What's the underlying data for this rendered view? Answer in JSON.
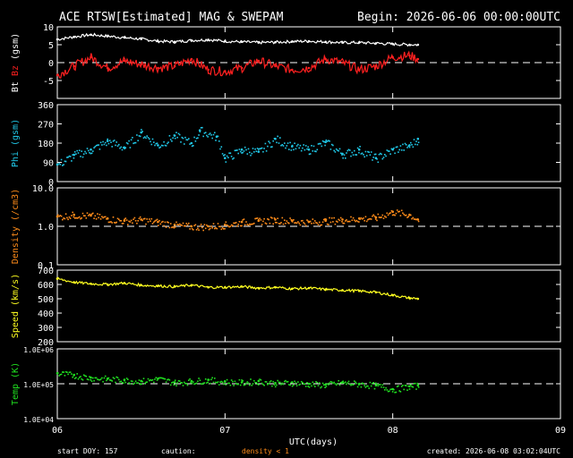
{
  "header": {
    "title": "ACE RTSW[Estimated] MAG & SWEPAM",
    "begin": "Begin: 2026-06-06 00:00:00UTC"
  },
  "footer": {
    "start_doy": "start DOY: 157",
    "caution": "caution:",
    "density_note": "density < 1",
    "created": "created: 2026-06-08 03:02:04UTC"
  },
  "colors": {
    "background": "#000000",
    "axis": "#ffffff",
    "bt": "#ffffff",
    "bz": "#ff2020",
    "phi": "#20c8e8",
    "density": "#ff8c1a",
    "speed": "#ffff20",
    "temp": "#20e020"
  },
  "chart_data": [
    {
      "type": "line",
      "panel": "mag",
      "ylabel_parts": [
        "Bt",
        "Bz",
        "(gsm)"
      ],
      "ylim": [
        -10,
        10
      ],
      "yticks": [
        "10",
        "5",
        "0",
        "-5"
      ],
      "scale": "linear",
      "reference_line": 0,
      "series": [
        {
          "name": "Bt",
          "x": [
            0,
            0.1,
            0.2,
            0.3,
            0.4,
            0.5,
            0.6,
            0.7,
            0.8,
            0.9,
            1.0,
            1.1,
            1.2,
            1.3,
            1.4,
            1.5,
            1.6,
            1.7,
            1.8,
            1.9,
            2.0,
            2.1,
            2.15
          ],
          "values": [
            6.5,
            7.2,
            7.8,
            7.4,
            7.0,
            6.6,
            6.0,
            5.8,
            6.2,
            6.4,
            6.0,
            5.8,
            5.6,
            5.7,
            5.9,
            6.0,
            5.8,
            5.6,
            5.6,
            5.4,
            5.2,
            5.0,
            5.0
          ]
        },
        {
          "name": "Bz",
          "x": [
            0,
            0.1,
            0.2,
            0.3,
            0.4,
            0.5,
            0.6,
            0.7,
            0.8,
            0.9,
            1.0,
            1.1,
            1.2,
            1.3,
            1.4,
            1.5,
            1.6,
            1.7,
            1.8,
            1.9,
            2.0,
            2.1,
            2.15
          ],
          "values": [
            -3.5,
            -1.0,
            1.5,
            -1.5,
            0.5,
            -0.5,
            -1.5,
            -1.0,
            1.0,
            -2.0,
            -2.5,
            -1.5,
            0.5,
            -1.0,
            -2.0,
            -1.5,
            1.0,
            0.0,
            -2.0,
            -1.0,
            1.5,
            2.0,
            1.0
          ]
        }
      ]
    },
    {
      "type": "scatter",
      "panel": "phi",
      "ylabel": "Phi (gsm)",
      "ylim": [
        0,
        360
      ],
      "yticks": [
        "360",
        "270",
        "180",
        "90",
        "0"
      ],
      "scale": "linear",
      "series": [
        {
          "name": "Phi",
          "x": [
            0,
            0.1,
            0.2,
            0.3,
            0.4,
            0.5,
            0.6,
            0.7,
            0.8,
            0.85,
            0.95,
            1.0,
            1.1,
            1.2,
            1.3,
            1.4,
            1.5,
            1.6,
            1.7,
            1.8,
            1.9,
            2.0,
            2.1,
            2.15
          ],
          "values": [
            80,
            125,
            150,
            190,
            160,
            230,
            170,
            215,
            180,
            240,
            210,
            110,
            150,
            140,
            200,
            165,
            150,
            185,
            130,
            150,
            110,
            150,
            170,
            200
          ]
        }
      ]
    },
    {
      "type": "scatter",
      "panel": "density",
      "ylabel": "Density (/cm3)",
      "ylim": [
        0.1,
        10.0
      ],
      "yticks": [
        "10.0",
        "1.0",
        "0.1"
      ],
      "scale": "log",
      "reference_line": 1.0,
      "series": [
        {
          "name": "Density",
          "x": [
            0,
            0.1,
            0.2,
            0.3,
            0.4,
            0.5,
            0.6,
            0.7,
            0.8,
            0.9,
            1.0,
            1.1,
            1.2,
            1.3,
            1.4,
            1.5,
            1.6,
            1.7,
            1.8,
            1.9,
            2.0,
            2.1,
            2.15
          ],
          "values": [
            1.8,
            2.0,
            1.9,
            1.6,
            1.4,
            1.5,
            1.3,
            1.1,
            1.0,
            1.0,
            1.1,
            1.3,
            1.4,
            1.5,
            1.4,
            1.3,
            1.4,
            1.5,
            1.6,
            1.7,
            2.4,
            2.0,
            1.5
          ]
        }
      ]
    },
    {
      "type": "line",
      "panel": "speed",
      "ylabel": "Speed (km/s)",
      "ylim": [
        200,
        700
      ],
      "yticks": [
        "700",
        "600",
        "500",
        "400",
        "300",
        "200"
      ],
      "scale": "linear",
      "series": [
        {
          "name": "Speed",
          "x": [
            0,
            0.1,
            0.2,
            0.3,
            0.4,
            0.5,
            0.6,
            0.7,
            0.8,
            0.9,
            1.0,
            1.1,
            1.2,
            1.3,
            1.4,
            1.5,
            1.6,
            1.7,
            1.8,
            1.9,
            2.0,
            2.1,
            2.15
          ],
          "values": [
            640,
            615,
            605,
            600,
            610,
            595,
            590,
            585,
            595,
            580,
            580,
            585,
            575,
            580,
            570,
            575,
            565,
            560,
            555,
            545,
            525,
            505,
            500
          ]
        }
      ]
    },
    {
      "type": "scatter",
      "panel": "temp",
      "ylabel": "Temp (K)",
      "ylim": [
        10000,
        1000000
      ],
      "yticks": [
        "1.0E+06",
        "1.0E+05",
        "1.0E+04"
      ],
      "scale": "log",
      "reference_line": 100000,
      "series": [
        {
          "name": "Temp",
          "x": [
            0,
            0.1,
            0.2,
            0.3,
            0.4,
            0.5,
            0.6,
            0.7,
            0.8,
            0.9,
            1.0,
            1.1,
            1.2,
            1.3,
            1.4,
            1.5,
            1.6,
            1.7,
            1.8,
            1.9,
            2.0,
            2.1,
            2.15
          ],
          "values": [
            200000,
            180000,
            150000,
            140000,
            130000,
            120000,
            140000,
            110000,
            120000,
            130000,
            115000,
            110000,
            120000,
            105000,
            110000,
            100000,
            95000,
            110000,
            100000,
            90000,
            70000,
            85000,
            90000
          ]
        }
      ]
    }
  ],
  "x_axis": {
    "label": "UTC(days)",
    "ticks": [
      "06",
      "07",
      "08",
      "09"
    ],
    "range": [
      0,
      3
    ]
  }
}
